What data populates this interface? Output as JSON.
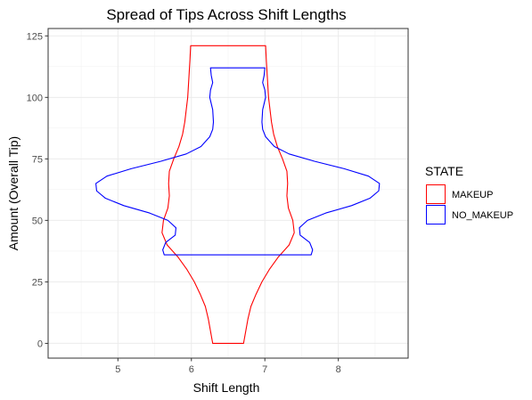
{
  "chart_data": {
    "type": "violin",
    "title": "Spread of Tips Across Shift Lengths",
    "xlabel": "Shift Length",
    "ylabel": "Amount (Overall Tip)",
    "xlim": [
      4.05,
      8.95
    ],
    "ylim": [
      -6,
      128
    ],
    "x_ticks": [
      5,
      6,
      7,
      8
    ],
    "y_ticks": [
      0,
      25,
      50,
      75,
      100,
      125
    ],
    "grid": true,
    "legend": {
      "title": "STATE",
      "placement": "right",
      "entries": [
        "MAKEUP",
        "NO_MAKEUP"
      ]
    },
    "series": [
      {
        "name": "MAKEUP",
        "color": "#ff0000",
        "center_x": 6.5,
        "y_range": [
          0,
          121
        ],
        "profile": [
          {
            "y": 0,
            "half_width": 0.21
          },
          {
            "y": 5,
            "half_width": 0.24
          },
          {
            "y": 10,
            "half_width": 0.27
          },
          {
            "y": 15,
            "half_width": 0.31
          },
          {
            "y": 20,
            "half_width": 0.38
          },
          {
            "y": 25,
            "half_width": 0.46
          },
          {
            "y": 30,
            "half_width": 0.56
          },
          {
            "y": 35,
            "half_width": 0.68
          },
          {
            "y": 40,
            "half_width": 0.83
          },
          {
            "y": 45,
            "half_width": 0.9
          },
          {
            "y": 50,
            "half_width": 0.88
          },
          {
            "y": 55,
            "half_width": 0.82
          },
          {
            "y": 60,
            "half_width": 0.8
          },
          {
            "y": 65,
            "half_width": 0.81
          },
          {
            "y": 70,
            "half_width": 0.8
          },
          {
            "y": 75,
            "half_width": 0.74
          },
          {
            "y": 80,
            "half_width": 0.67
          },
          {
            "y": 85,
            "half_width": 0.62
          },
          {
            "y": 90,
            "half_width": 0.59
          },
          {
            "y": 95,
            "half_width": 0.57
          },
          {
            "y": 100,
            "half_width": 0.55
          },
          {
            "y": 105,
            "half_width": 0.54
          },
          {
            "y": 110,
            "half_width": 0.53
          },
          {
            "y": 115,
            "half_width": 0.52
          },
          {
            "y": 121,
            "half_width": 0.51
          }
        ]
      },
      {
        "name": "NO_MAKEUP",
        "color": "#0000ff",
        "center_x": 6.63,
        "y_range": [
          36,
          112
        ],
        "profile": [
          {
            "y": 36,
            "half_width": 1.0
          },
          {
            "y": 38,
            "half_width": 1.02
          },
          {
            "y": 41,
            "half_width": 0.98
          },
          {
            "y": 44,
            "half_width": 0.85
          },
          {
            "y": 47,
            "half_width": 0.84
          },
          {
            "y": 50,
            "half_width": 0.95
          },
          {
            "y": 53,
            "half_width": 1.2
          },
          {
            "y": 56,
            "half_width": 1.55
          },
          {
            "y": 59,
            "half_width": 1.8
          },
          {
            "y": 62,
            "half_width": 1.92
          },
          {
            "y": 65,
            "half_width": 1.93
          },
          {
            "y": 68,
            "half_width": 1.78
          },
          {
            "y": 71,
            "half_width": 1.45
          },
          {
            "y": 74,
            "half_width": 1.05
          },
          {
            "y": 77,
            "half_width": 0.7
          },
          {
            "y": 80,
            "half_width": 0.5
          },
          {
            "y": 84,
            "half_width": 0.38
          },
          {
            "y": 87,
            "half_width": 0.34
          },
          {
            "y": 90,
            "half_width": 0.33
          },
          {
            "y": 95,
            "half_width": 0.34
          },
          {
            "y": 100,
            "half_width": 0.38
          },
          {
            "y": 103,
            "half_width": 0.37
          },
          {
            "y": 106,
            "half_width": 0.34
          },
          {
            "y": 109,
            "half_width": 0.36
          },
          {
            "y": 112,
            "half_width": 0.37
          }
        ]
      }
    ]
  }
}
